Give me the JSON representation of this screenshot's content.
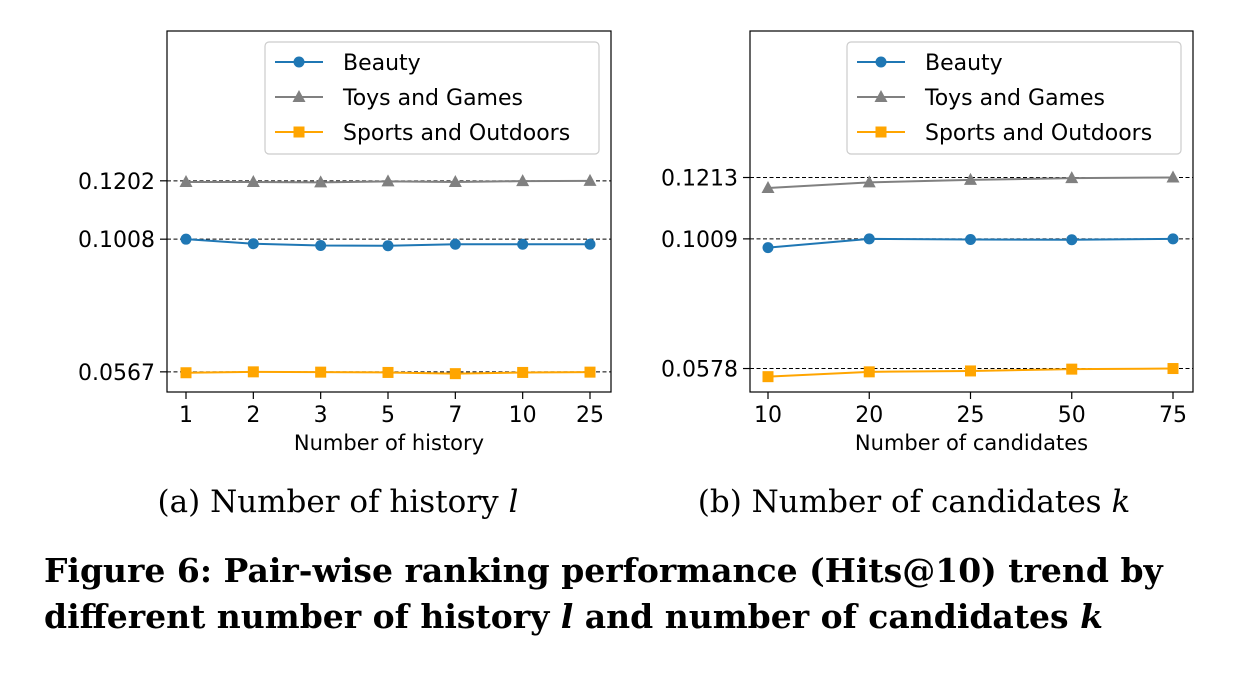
{
  "chart_data": [
    {
      "type": "line",
      "subcaption": "(a) Number of history",
      "subcaption_var": "l",
      "xlabel": "Number of history",
      "categories": [
        "1",
        "2",
        "3",
        "5",
        "7",
        "10",
        "25"
      ],
      "yticks": [
        "0.0567",
        "0.1008",
        "0.1202"
      ],
      "ytick_values": [
        0.0567,
        0.1008,
        0.1202
      ],
      "ylim": [
        0.05,
        0.17
      ],
      "grid": false,
      "legend_position": "upper-right",
      "series": [
        {
          "name": "Beauty",
          "marker": "circle",
          "color": "#1f77b4",
          "values": [
            0.1008,
            0.0993,
            0.0987,
            0.0986,
            0.0991,
            0.0991,
            0.0991
          ]
        },
        {
          "name": "Toys and Games",
          "marker": "triangle",
          "color": "#808080",
          "values": [
            0.1198,
            0.1198,
            0.1197,
            0.12,
            0.1198,
            0.1201,
            0.1202
          ]
        },
        {
          "name": "Sports and Outdoors",
          "marker": "square",
          "color": "#ffa500",
          "values": [
            0.0564,
            0.0567,
            0.0566,
            0.0565,
            0.0561,
            0.0565,
            0.0566
          ]
        }
      ]
    },
    {
      "type": "line",
      "subcaption": "(b) Number of candidates",
      "subcaption_var": "k",
      "xlabel": "Number of candidates",
      "categories": [
        "10",
        "20",
        "25",
        "50",
        "75"
      ],
      "yticks": [
        "0.0578",
        "0.1009",
        "0.1213"
      ],
      "ytick_values": [
        0.0578,
        0.1009,
        0.1213
      ],
      "ylim": [
        0.05,
        0.17
      ],
      "grid": false,
      "legend_position": "upper-right",
      "series": [
        {
          "name": "Beauty",
          "marker": "circle",
          "color": "#1f77b4",
          "values": [
            0.098,
            0.1009,
            0.1007,
            0.1006,
            0.1009
          ]
        },
        {
          "name": "Toys and Games",
          "marker": "triangle",
          "color": "#808080",
          "values": [
            0.1178,
            0.1197,
            0.1205,
            0.1211,
            0.1213
          ]
        },
        {
          "name": "Sports and Outdoors",
          "marker": "square",
          "color": "#ffa500",
          "values": [
            0.0551,
            0.0567,
            0.057,
            0.0576,
            0.0578
          ]
        }
      ]
    }
  ],
  "caption": {
    "line1": "Figure 6: Pair-wise ranking performance (Hits@10) trend by",
    "line2_prefix": "different number of history ",
    "line2_var1": "l",
    "line2_middle": " and number of candidates ",
    "line2_var2": "k"
  }
}
